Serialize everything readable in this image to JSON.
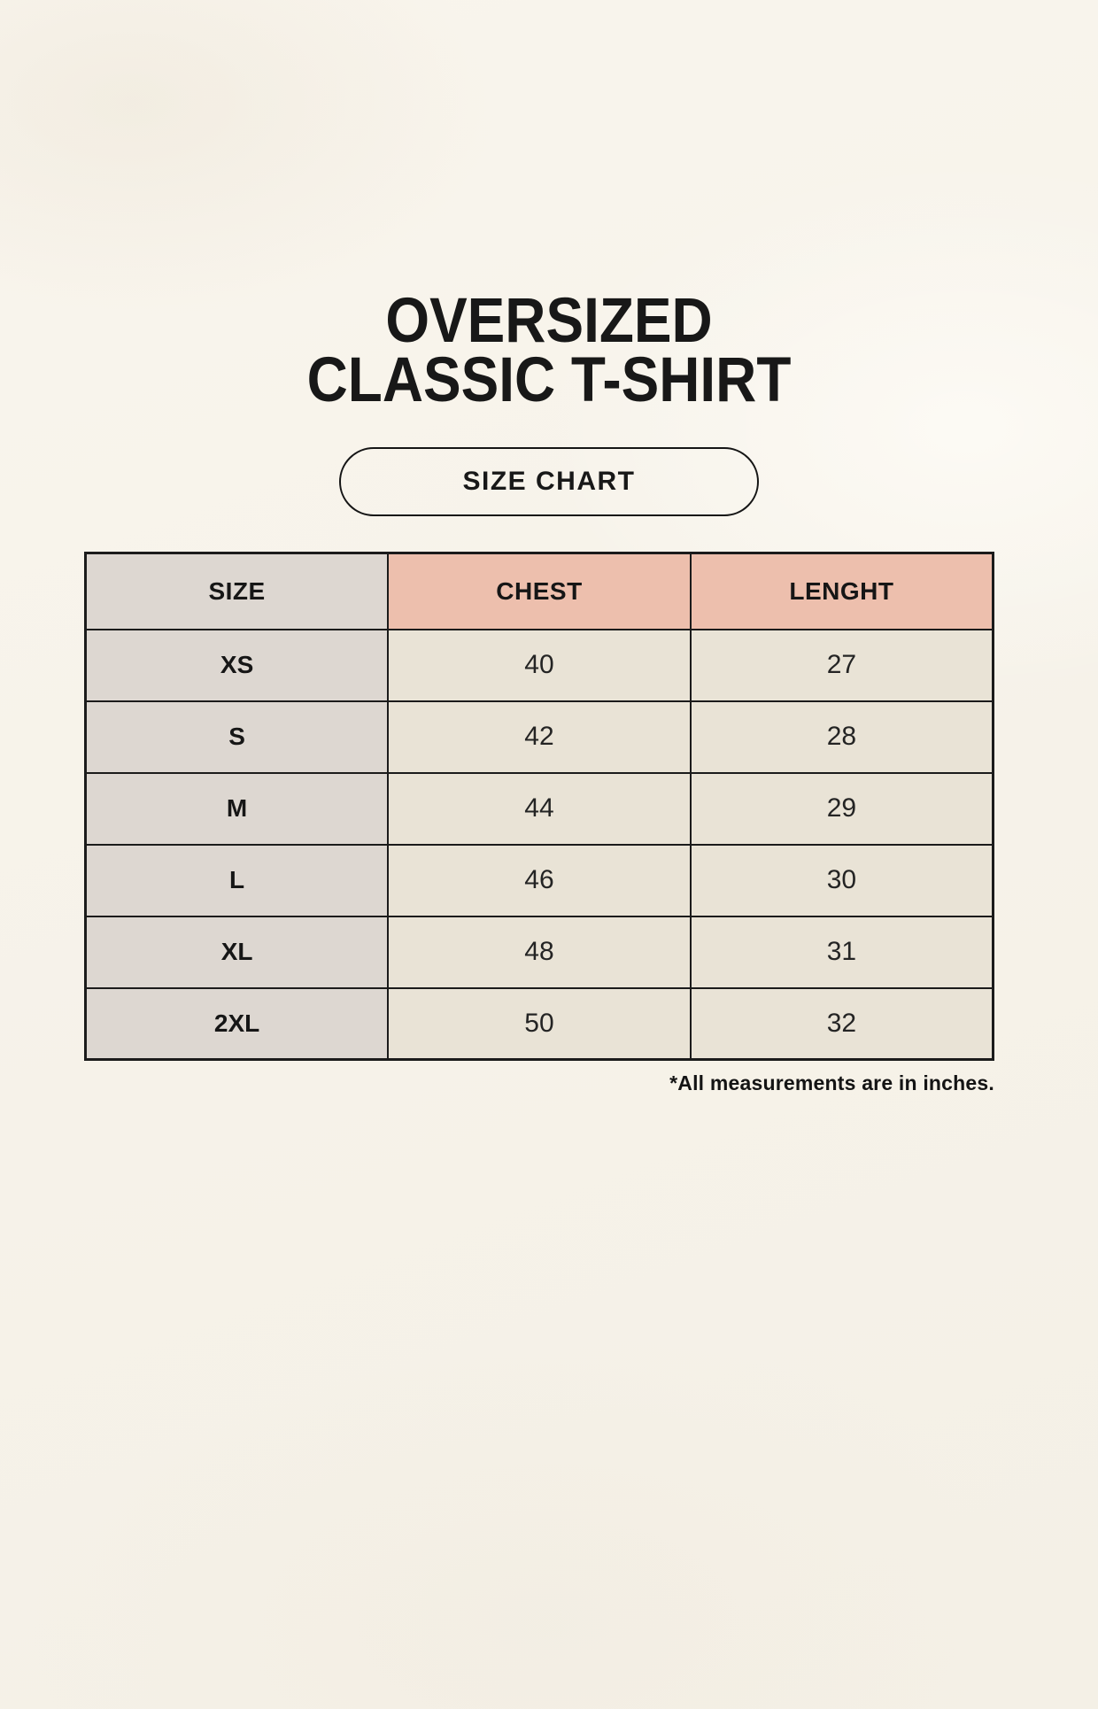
{
  "page": {
    "title_line1": "OVERSIZED",
    "title_line2": "CLASSIC T-SHIRT",
    "badge_label": "SIZE CHART",
    "footnote": "*All measurements are in inches."
  },
  "colors": {
    "page_background": "#f7f3ea",
    "cell_cream": "#e9e3d6",
    "cell_gray": "#ddd7d1",
    "header_pink": "#edbfad",
    "border": "#1b1b1b",
    "text": "#1e1e1e"
  },
  "chart_data": {
    "type": "table",
    "title": "OVERSIZED CLASSIC T-SHIRT",
    "subtitle": "SIZE CHART",
    "units": "inches",
    "columns": [
      "SIZE",
      "CHEST",
      "LENGHT"
    ],
    "rows": [
      {
        "size": "XS",
        "chest": 40,
        "lenght": 27
      },
      {
        "size": "S",
        "chest": 42,
        "lenght": 28
      },
      {
        "size": "M",
        "chest": 44,
        "lenght": 29
      },
      {
        "size": "L",
        "chest": 46,
        "lenght": 30
      },
      {
        "size": "XL",
        "chest": 48,
        "lenght": 31
      },
      {
        "size": "2XL",
        "chest": 50,
        "lenght": 32
      }
    ]
  }
}
